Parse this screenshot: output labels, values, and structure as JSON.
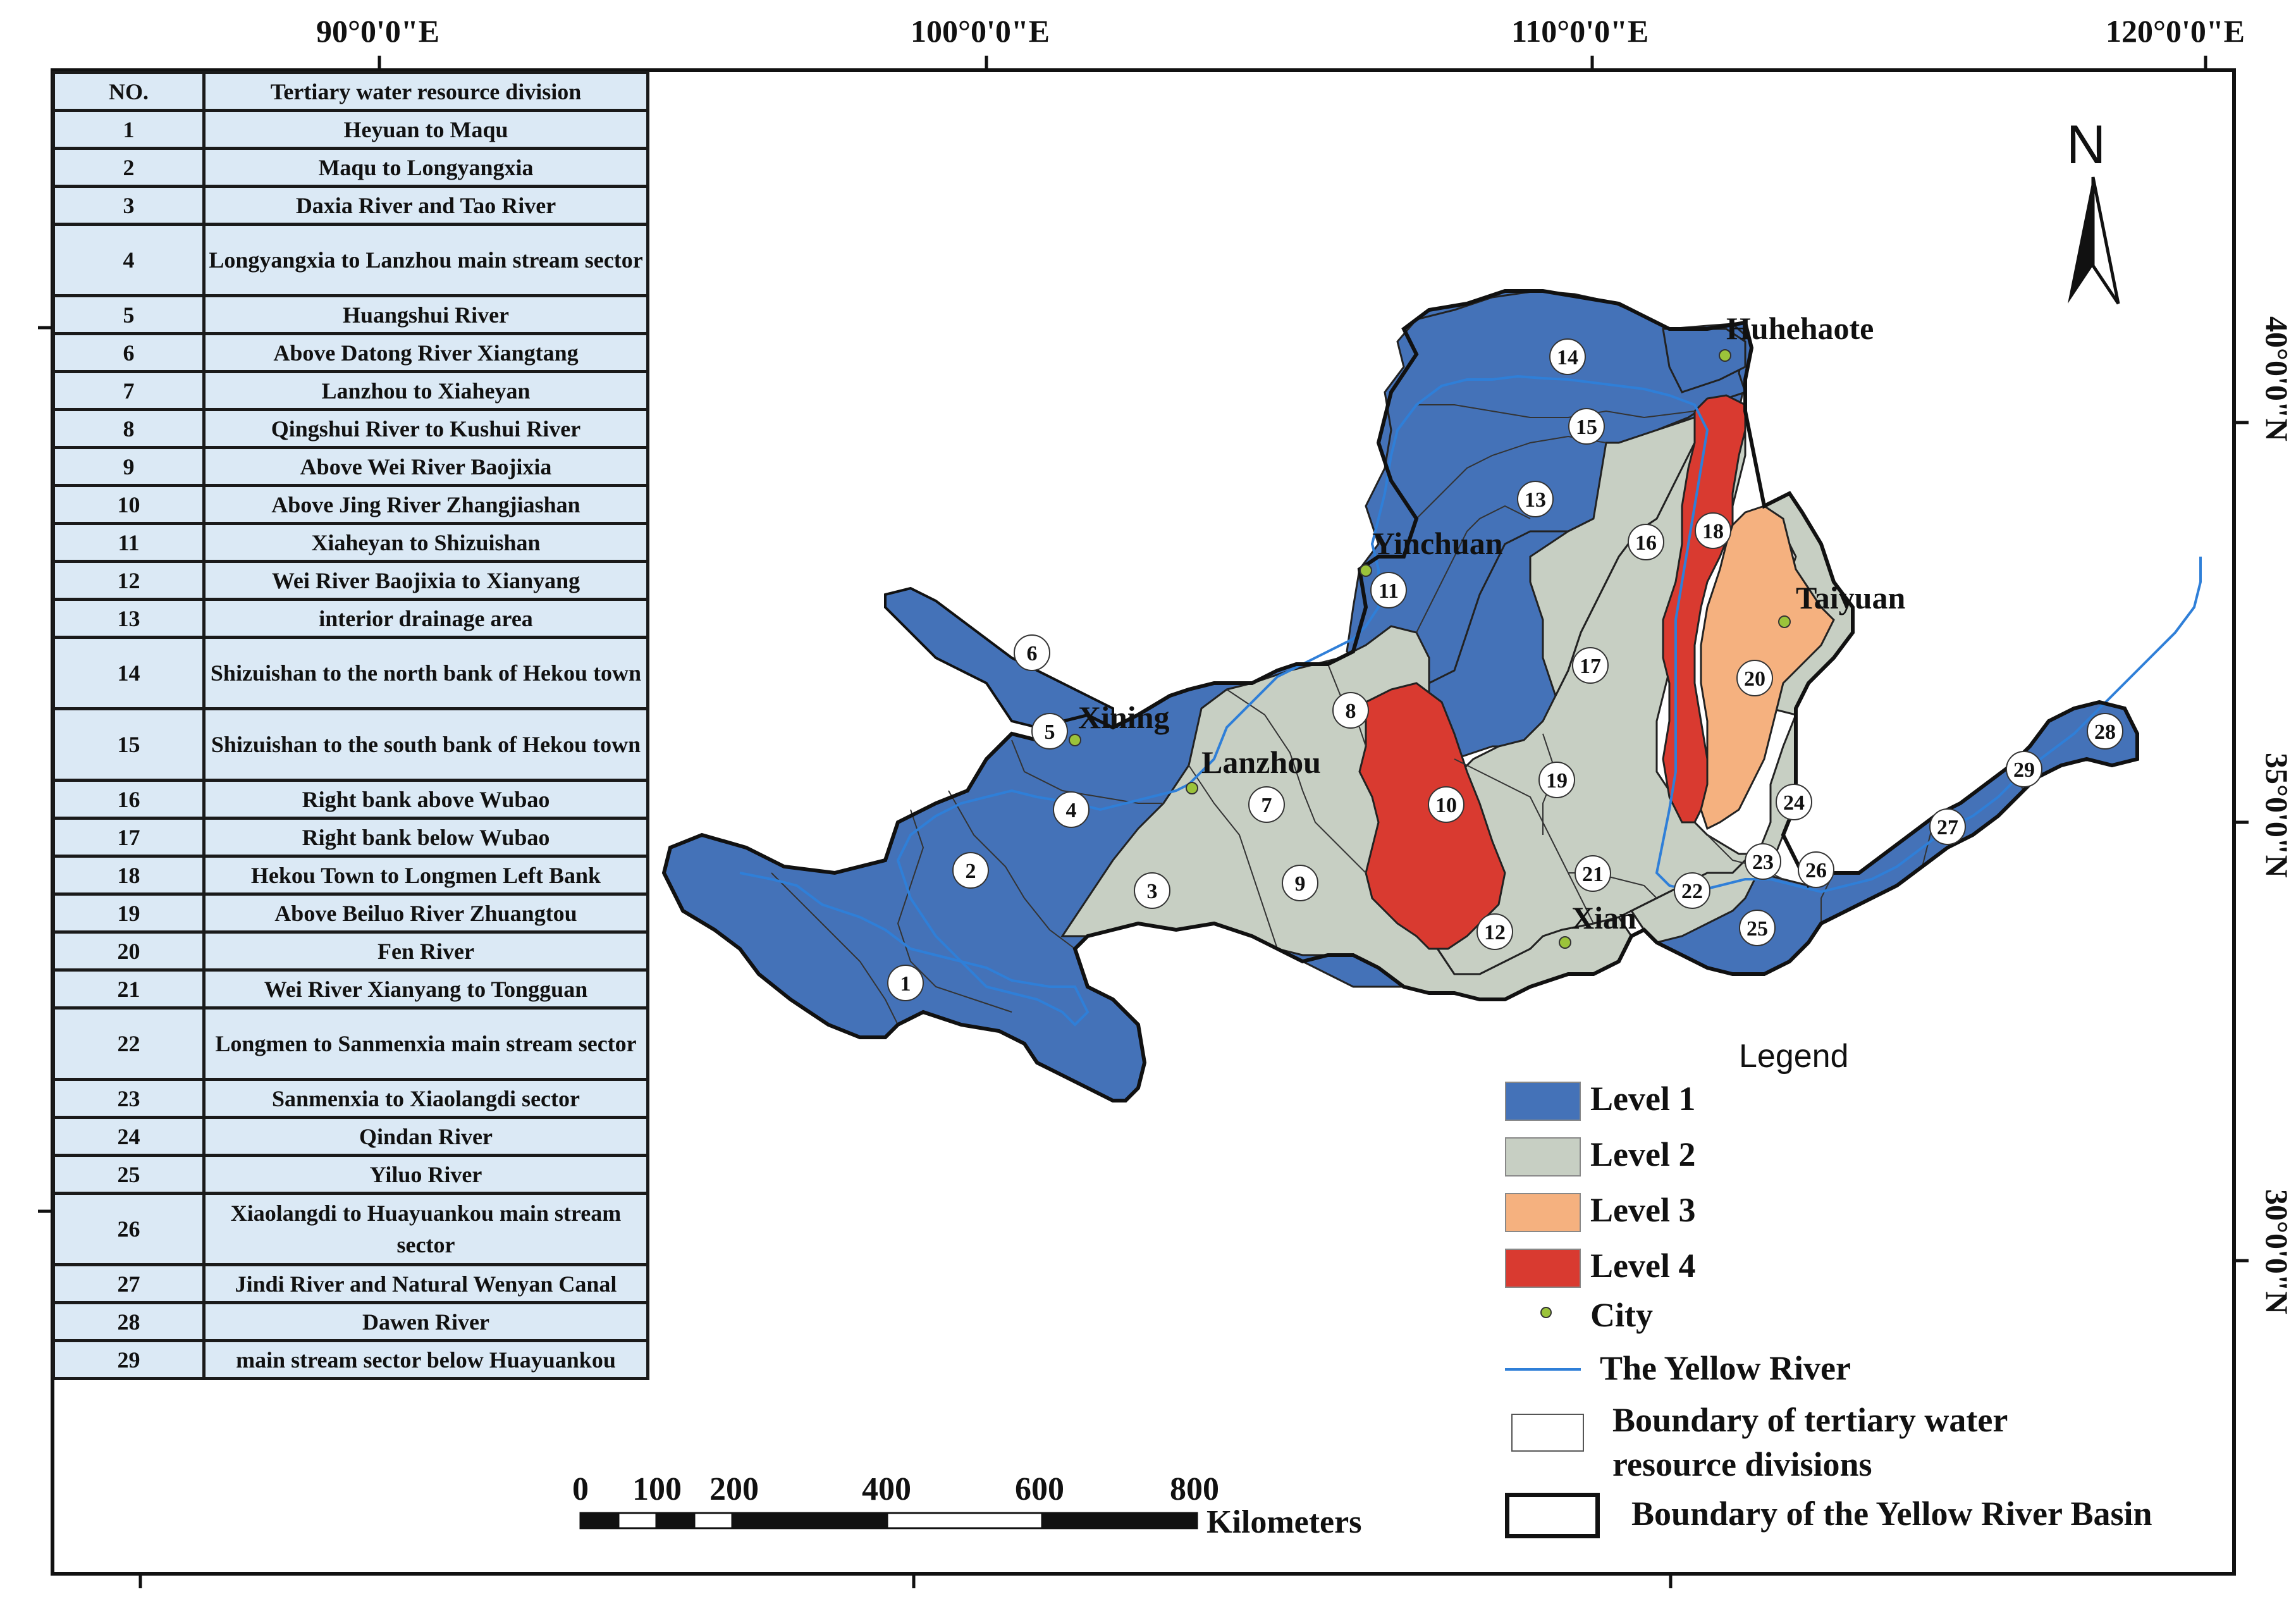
{
  "graticule": {
    "lon_labels": [
      "90°0'0\"E",
      "100°0'0\"E",
      "110°0'0\"E",
      "120°0'0\"E"
    ],
    "lat_labels": [
      "40°0'0\"N",
      "35°0'0\"N",
      "30°0'0\"N"
    ]
  },
  "table": {
    "header_no": "NO.",
    "header_name": "Tertiary water resource division",
    "rows": [
      {
        "no": "1",
        "name": "Heyuan to Maqu"
      },
      {
        "no": "2",
        "name": "Maqu to Longyangxia"
      },
      {
        "no": "3",
        "name": "Daxia River and Tao River"
      },
      {
        "no": "4",
        "name": "Longyangxia to Lanzhou main stream sector"
      },
      {
        "no": "5",
        "name": "Huangshui River"
      },
      {
        "no": "6",
        "name": "Above Datong River Xiangtang"
      },
      {
        "no": "7",
        "name": "Lanzhou to Xiaheyan"
      },
      {
        "no": "8",
        "name": "Qingshui River to Kushui River"
      },
      {
        "no": "9",
        "name": "Above Wei River Baojixia"
      },
      {
        "no": "10",
        "name": "Above Jing River Zhangjiashan"
      },
      {
        "no": "11",
        "name": "Xiaheyan to Shizuishan"
      },
      {
        "no": "12",
        "name": "Wei River Baojixia to Xianyang"
      },
      {
        "no": "13",
        "name": "interior drainage area"
      },
      {
        "no": "14",
        "name": "Shizuishan to the north bank of Hekou town"
      },
      {
        "no": "15",
        "name": "Shizuishan to the south bank of Hekou town"
      },
      {
        "no": "16",
        "name": "Right bank above Wubao"
      },
      {
        "no": "17",
        "name": "Right bank below Wubao"
      },
      {
        "no": "18",
        "name": "Hekou Town to Longmen Left Bank"
      },
      {
        "no": "19",
        "name": "Above Beiluo River Zhuangtou"
      },
      {
        "no": "20",
        "name": "Fen River"
      },
      {
        "no": "21",
        "name": "Wei River Xianyang to Tongguan"
      },
      {
        "no": "22",
        "name": "Longmen to Sanmenxia main stream sector"
      },
      {
        "no": "23",
        "name": "Sanmenxia to Xiaolangdi sector"
      },
      {
        "no": "24",
        "name": "Qindan River"
      },
      {
        "no": "25",
        "name": "Yiluo River"
      },
      {
        "no": "26",
        "name": "Xiaolangdi to Huayuankou main stream sector"
      },
      {
        "no": "27",
        "name": "Jindi River and Natural Wenyan Canal"
      },
      {
        "no": "28",
        "name": "Dawen River"
      },
      {
        "no": "29",
        "name": "main stream sector below Huayuankou"
      }
    ]
  },
  "cities": [
    {
      "name": "Huhehaote"
    },
    {
      "name": "Yinchuan"
    },
    {
      "name": "Taiyuan"
    },
    {
      "name": "Xining"
    },
    {
      "name": "Lanzhou"
    },
    {
      "name": "Xian"
    }
  ],
  "divisions": [
    {
      "no": "1",
      "level": 1
    },
    {
      "no": "2",
      "level": 1
    },
    {
      "no": "3",
      "level": 2
    },
    {
      "no": "4",
      "level": 1
    },
    {
      "no": "5",
      "level": 1
    },
    {
      "no": "6",
      "level": 1
    },
    {
      "no": "7",
      "level": 2
    },
    {
      "no": "8",
      "level": 2
    },
    {
      "no": "9",
      "level": 2
    },
    {
      "no": "10",
      "level": 4
    },
    {
      "no": "11",
      "level": 1
    },
    {
      "no": "12",
      "level": 2
    },
    {
      "no": "13",
      "level": 1
    },
    {
      "no": "14",
      "level": 1
    },
    {
      "no": "15",
      "level": 1
    },
    {
      "no": "16",
      "level": 2
    },
    {
      "no": "17",
      "level": 2
    },
    {
      "no": "18",
      "level": 4
    },
    {
      "no": "19",
      "level": 2
    },
    {
      "no": "20",
      "level": 3
    },
    {
      "no": "21",
      "level": 2
    },
    {
      "no": "22",
      "level": 2
    },
    {
      "no": "23",
      "level": 1
    },
    {
      "no": "24",
      "level": 2
    },
    {
      "no": "25",
      "level": 1
    },
    {
      "no": "26",
      "level": 1
    },
    {
      "no": "27",
      "level": 1
    },
    {
      "no": "28",
      "level": 1
    },
    {
      "no": "29",
      "level": 1
    }
  ],
  "north_label": "N",
  "legend": {
    "title": "Legend",
    "level1": "Level 1",
    "level2": "Level 2",
    "level3": "Level 3",
    "level4": "Level 4",
    "city": "City",
    "river": "The Yellow River",
    "tertiary_boundary": "Boundary of tertiary water resource divisions",
    "basin_boundary": "Boundary of the Yellow River Basin"
  },
  "colors": {
    "level1": "#4472b8",
    "level2": "#c7cfc3",
    "level3": "#f5b17f",
    "level4": "#d93a30",
    "river": "#2f7fd8",
    "city": "#9bc33a",
    "table_cell": "#dbe9f5"
  },
  "scalebar": {
    "ticks": [
      "0",
      "100",
      "200",
      "400",
      "600",
      "800"
    ],
    "unit": "Kilometers"
  }
}
